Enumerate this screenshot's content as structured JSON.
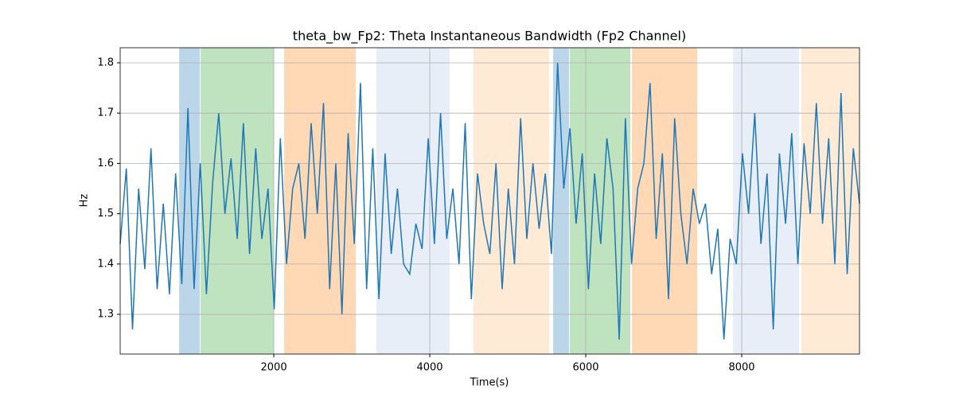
{
  "chart_data": {
    "type": "line",
    "title": "theta_bw_Fp2: Theta Instantaneous Bandwidth (Fp2 Channel)",
    "xlabel": "Time(s)",
    "ylabel": "Hz",
    "xlim": [
      30,
      9510
    ],
    "ylim": [
      1.221,
      1.83
    ],
    "xticks": [
      2000,
      4000,
      6000,
      8000
    ],
    "yticks": [
      1.3,
      1.4,
      1.5,
      1.6,
      1.7,
      1.8
    ],
    "grid": true,
    "spans": [
      {
        "start": 786,
        "end": 1051,
        "color": "#1f77b4"
      },
      {
        "start": 1061,
        "end": 2000,
        "color": "#2ca02c"
      },
      {
        "start": 2133,
        "end": 3051,
        "color": "#ff7f0e"
      },
      {
        "start": 3316,
        "end": 4255,
        "color": "#aec7e8"
      },
      {
        "start": 4561,
        "end": 5531,
        "color": "#ffbb78"
      },
      {
        "start": 5582,
        "end": 5786,
        "color": "#1f77b4"
      },
      {
        "start": 5796,
        "end": 6571,
        "color": "#2ca02c"
      },
      {
        "start": 6592,
        "end": 7429,
        "color": "#ff7f0e"
      },
      {
        "start": 7888,
        "end": 8735,
        "color": "#aec7e8"
      },
      {
        "start": 8765,
        "end": 9510,
        "color": "#ffbb78"
      }
    ],
    "x": [
      30,
      109,
      188,
      267,
      346,
      425,
      504,
      583,
      662,
      741,
      820,
      899,
      978,
      1057,
      1136,
      1215,
      1294,
      1373,
      1452,
      1531,
      1610,
      1689,
      1768,
      1847,
      1926,
      2005,
      2084,
      2163,
      2242,
      2321,
      2400,
      2479,
      2558,
      2637,
      2716,
      2795,
      2874,
      2953,
      3032,
      3111,
      3190,
      3269,
      3348,
      3427,
      3506,
      3585,
      3664,
      3743,
      3822,
      3901,
      3980,
      4059,
      4138,
      4217,
      4296,
      4375,
      4454,
      4533,
      4612,
      4691,
      4770,
      4849,
      4928,
      5007,
      5086,
      5165,
      5244,
      5323,
      5402,
      5481,
      5560,
      5639,
      5718,
      5797,
      5876,
      5955,
      6034,
      6113,
      6192,
      6271,
      6350,
      6429,
      6508,
      6587,
      6666,
      6745,
      6824,
      6903,
      6982,
      7061,
      7140,
      7219,
      7298,
      7377,
      7456,
      7535,
      7614,
      7693,
      7772,
      7851,
      7930,
      8009,
      8088,
      8167,
      8246,
      8325,
      8404,
      8483,
      8562,
      8641,
      8720,
      8799,
      8878,
      8957,
      9036,
      9115,
      9194,
      9273,
      9352,
      9431,
      9510
    ],
    "series": [
      {
        "color": "#1f77b4",
        "values": [
          1.44,
          1.59,
          1.27,
          1.55,
          1.39,
          1.63,
          1.35,
          1.52,
          1.34,
          1.58,
          1.36,
          1.71,
          1.35,
          1.6,
          1.34,
          1.56,
          1.7,
          1.5,
          1.61,
          1.45,
          1.68,
          1.42,
          1.63,
          1.45,
          1.55,
          1.31,
          1.65,
          1.4,
          1.55,
          1.6,
          1.45,
          1.68,
          1.5,
          1.72,
          1.35,
          1.6,
          1.3,
          1.66,
          1.44,
          1.76,
          1.35,
          1.63,
          1.33,
          1.62,
          1.42,
          1.55,
          1.4,
          1.38,
          1.48,
          1.43,
          1.65,
          1.44,
          1.7,
          1.45,
          1.55,
          1.4,
          1.68,
          1.33,
          1.58,
          1.48,
          1.42,
          1.6,
          1.35,
          1.55,
          1.4,
          1.69,
          1.45,
          1.6,
          1.47,
          1.58,
          1.42,
          1.8,
          1.55,
          1.67,
          1.48,
          1.62,
          1.35,
          1.58,
          1.44,
          1.65,
          1.55,
          1.25,
          1.69,
          1.4,
          1.55,
          1.6,
          1.76,
          1.45,
          1.62,
          1.33,
          1.69,
          1.5,
          1.4,
          1.55,
          1.48,
          1.52,
          1.38,
          1.47,
          1.25,
          1.45,
          1.4,
          1.62,
          1.5,
          1.7,
          1.44,
          1.58,
          1.27,
          1.62,
          1.48,
          1.66,
          1.4,
          1.64,
          1.5,
          1.72,
          1.48,
          1.65,
          1.4,
          1.74,
          1.38,
          1.63,
          1.52
        ]
      }
    ]
  }
}
